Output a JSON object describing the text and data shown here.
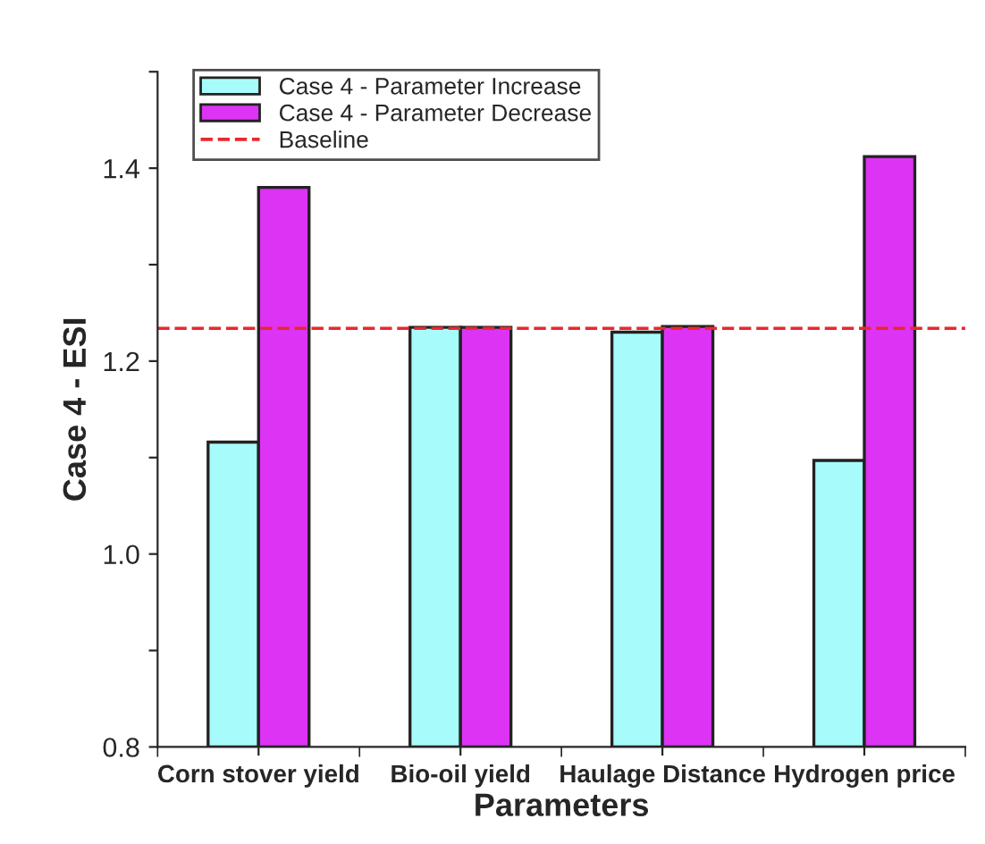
{
  "chart_data": {
    "type": "bar",
    "categories": [
      "Corn stover yield",
      "Bio-oil yield",
      "Haulage Distance",
      "Hydrogen price"
    ],
    "series": [
      {
        "name": "Case 4 - Parameter Increase",
        "color": "#a8fbfb",
        "values": [
          1.116,
          1.235,
          1.23,
          1.097
        ]
      },
      {
        "name": "Case 4 - Parameter Decrease",
        "color": "#dd33f5",
        "values": [
          1.38,
          1.235,
          1.236,
          1.412
        ]
      }
    ],
    "xlabel": "Parameters",
    "ylabel": "Case 4 - ESI",
    "ylim": [
      0.8,
      1.5
    ],
    "yticks": [
      0.8,
      {
        "value": 0.9,
        "label": null
      },
      {
        "value": 1.0,
        "label": "1.0"
      },
      {
        "value": 1.1,
        "label": null
      },
      1.2,
      {
        "value": 1.3,
        "label": null
      },
      1.4,
      {
        "value": 1.5,
        "label": null
      }
    ],
    "ref_lines": [
      {
        "axis": "y",
        "value": 1.234,
        "label": "Baseline",
        "color": "#e8282e",
        "line_style": "dashed"
      }
    ],
    "legend": "top left",
    "grid": false
  }
}
